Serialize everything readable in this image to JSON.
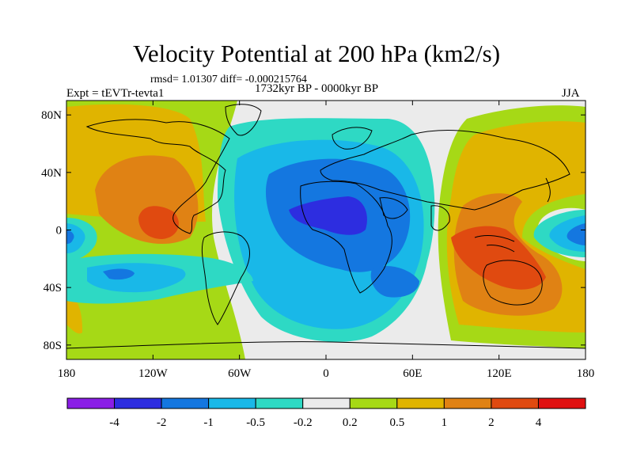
{
  "title": "Velocity Potential at 200 hPa (km2/s)",
  "stats_line": "rmsd= 1.01307 diff= -0.000215764",
  "experiment_label": "Expt = tEVTr-tevta1",
  "period_label": "1732kyr BP - 0000kyr BP",
  "season_label": "JJA",
  "axes": {
    "x_ticks": [
      {
        "label": "180",
        "lon": -180
      },
      {
        "label": "120W",
        "lon": -120
      },
      {
        "label": "60W",
        "lon": -60
      },
      {
        "label": "0",
        "lon": 0
      },
      {
        "label": "60E",
        "lon": 60
      },
      {
        "label": "120E",
        "lon": 120
      },
      {
        "label": "180",
        "lon": 180
      }
    ],
    "y_ticks": [
      {
        "label": "80N",
        "lat": 80
      },
      {
        "label": "40N",
        "lat": 40
      },
      {
        "label": "0",
        "lat": 0
      },
      {
        "label": "40S",
        "lat": -40
      },
      {
        "label": "80S",
        "lat": -80
      }
    ],
    "lon_range": [
      -180,
      180
    ],
    "lat_range": [
      -90,
      90
    ]
  },
  "colorbar": {
    "colors": [
      "#8a1ee6",
      "#2d2de0",
      "#1477e0",
      "#19b8e8",
      "#2ed9c4",
      "#ebebeb",
      "#a6d916",
      "#e0b400",
      "#e08214",
      "#e04a10",
      "#e01010"
    ],
    "labels": [
      "-4",
      "-2",
      "-1",
      "-0.5",
      "-0.2",
      "0.2",
      "0.5",
      "1",
      "2",
      "4"
    ]
  }
}
